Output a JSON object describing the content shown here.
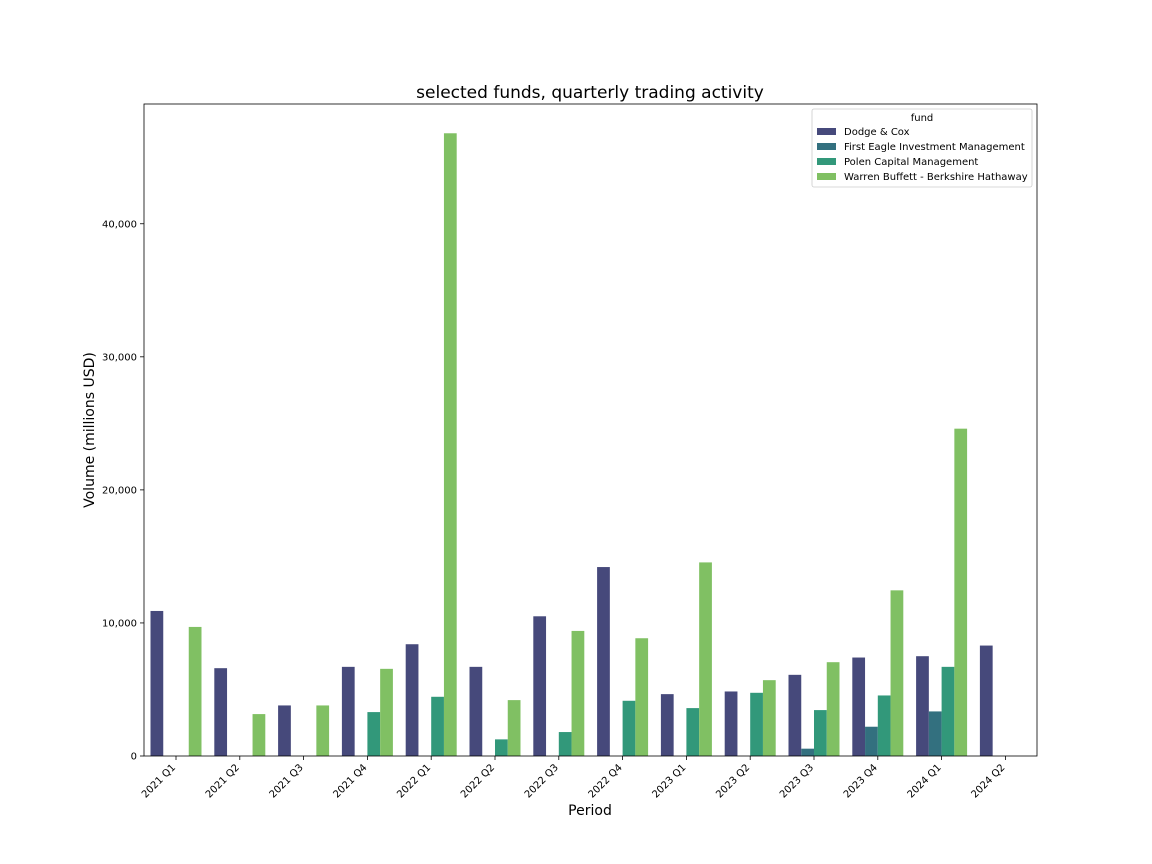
{
  "chart_data": {
    "type": "bar",
    "title": "selected funds, quarterly trading activity",
    "xlabel": "Period",
    "ylabel": "Volume (millions USD)",
    "ylim": [
      0,
      49000
    ],
    "yticks": [
      0,
      10000,
      20000,
      30000,
      40000
    ],
    "ytick_labels": [
      "0",
      "10,000",
      "20,000",
      "30,000",
      "40,000"
    ],
    "grid": false,
    "legend": {
      "title": "fund",
      "placement": "top-right"
    },
    "categories": [
      "2021 Q1",
      "2021 Q2",
      "2021 Q3",
      "2021 Q4",
      "2022 Q1",
      "2022 Q2",
      "2022 Q3",
      "2022 Q4",
      "2023 Q1",
      "2023 Q2",
      "2023 Q3",
      "2023 Q4",
      "2024 Q1",
      "2024 Q2"
    ],
    "series": [
      {
        "name": "Dodge & Cox",
        "color": "#46497b",
        "values": [
          10900,
          6600,
          3800,
          6700,
          8400,
          6700,
          10500,
          14200,
          4650,
          4850,
          6100,
          7400,
          7500,
          8300
        ]
      },
      {
        "name": "First Eagle Investment Management",
        "color": "#33707f",
        "values": [
          0,
          0,
          0,
          0,
          0,
          0,
          0,
          0,
          0,
          0,
          550,
          2200,
          3350,
          0
        ]
      },
      {
        "name": "Polen Capital Management",
        "color": "#32987a",
        "values": [
          0,
          0,
          0,
          3300,
          4450,
          1250,
          1800,
          4150,
          3600,
          4750,
          3450,
          4550,
          6700,
          0
        ]
      },
      {
        "name": "Warren Buffett - Berkshire Hathaway",
        "color": "#80c063",
        "values": [
          9700,
          3150,
          3800,
          6550,
          46800,
          4200,
          9400,
          8850,
          14550,
          5700,
          7050,
          12450,
          24600,
          0
        ]
      }
    ]
  }
}
